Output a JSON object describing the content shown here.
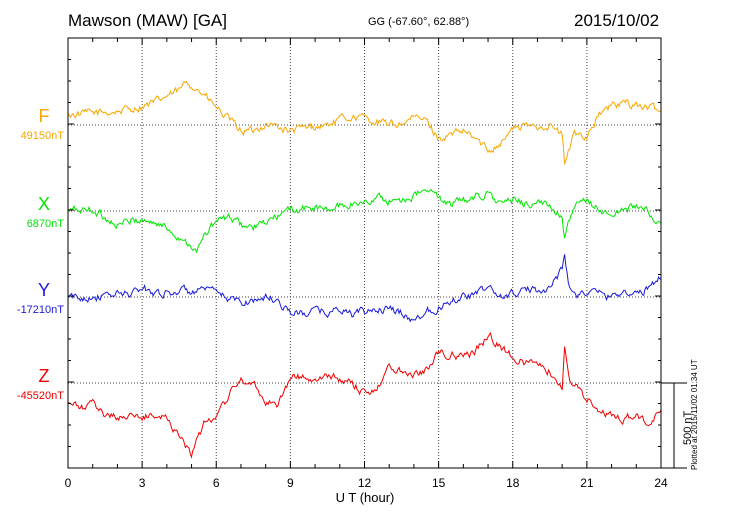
{
  "header": {
    "station": "Mawson (MAW)  [GA]",
    "coords": "GG (-67.60°,  62.88°)",
    "date": "2015/10/02"
  },
  "plotted_note": "Plotted at 2015/11/02 01:34  UT",
  "chart_data": {
    "type": "line",
    "xlabel": "U T (hour)",
    "xlim": [
      0,
      24
    ],
    "xticks": [
      "0",
      "3",
      "6",
      "9",
      "12",
      "15",
      "18",
      "21",
      "24"
    ],
    "grid": true,
    "scale_bar": "500 nT",
    "series": [
      {
        "name": "F",
        "baseline_label": "49150nT",
        "color": "#f7a800",
        "x": [
          0,
          1,
          2,
          3,
          3.5,
          4,
          4.5,
          4.8,
          5,
          5.5,
          6,
          6.5,
          7,
          7.5,
          8,
          8.5,
          9,
          9.5,
          10,
          10.5,
          11,
          11.5,
          12,
          12.5,
          13,
          13.5,
          14,
          14.5,
          15,
          15.5,
          16,
          16.5,
          17,
          17.5,
          18,
          18.5,
          19,
          19.5,
          20,
          20.1,
          20.5,
          21,
          21.5,
          22,
          22.5,
          23,
          23.5,
          24
        ],
        "y": [
          60,
          70,
          80,
          110,
          130,
          170,
          200,
          250,
          240,
          180,
          100,
          30,
          -30,
          -40,
          10,
          -10,
          -40,
          -20,
          -10,
          0,
          30,
          50,
          40,
          20,
          0,
          10,
          40,
          30,
          -80,
          -60,
          -40,
          -80,
          -150,
          -100,
          -20,
          -10,
          -5,
          0,
          -60,
          -230,
          -50,
          -60,
          60,
          110,
          130,
          120,
          100,
          80
        ]
      },
      {
        "name": "X",
        "baseline_label": "6870nT",
        "color": "#00e600",
        "x": [
          0,
          1,
          1.5,
          2,
          2.5,
          3,
          3.5,
          4,
          4.5,
          5,
          5.2,
          5.5,
          6,
          6.5,
          7,
          7.5,
          8,
          8.5,
          9,
          9.5,
          10,
          10.5,
          11,
          11.5,
          12,
          12.5,
          13,
          13.5,
          14,
          14.5,
          15,
          15.5,
          16,
          16.5,
          17,
          17.5,
          18,
          18.5,
          19,
          19.5,
          20,
          20.1,
          20.5,
          21,
          21.5,
          22,
          22.5,
          23,
          23.5,
          24
        ],
        "y": [
          0,
          10,
          -40,
          -80,
          -60,
          -50,
          -70,
          -100,
          -150,
          -200,
          -250,
          -150,
          -60,
          -40,
          -80,
          -100,
          -70,
          -30,
          0,
          10,
          20,
          0,
          30,
          40,
          50,
          80,
          60,
          70,
          90,
          120,
          80,
          40,
          60,
          90,
          100,
          40,
          60,
          50,
          40,
          30,
          -20,
          -150,
          20,
          60,
          10,
          -30,
          10,
          30,
          -10,
          -80
        ]
      },
      {
        "name": "Y",
        "baseline_label": "-17210nT",
        "color": "#1a1adb",
        "x": [
          0,
          0.5,
          1,
          1.5,
          2,
          2.5,
          3,
          3.5,
          4,
          4.5,
          5,
          5.5,
          6,
          6.5,
          7,
          7.5,
          8,
          8.5,
          9,
          9.5,
          10,
          10.5,
          11,
          11.5,
          12,
          12.5,
          13,
          13.5,
          14,
          14.5,
          15,
          15.5,
          16,
          16.5,
          17,
          17.5,
          18,
          18.5,
          19,
          19.5,
          20,
          20.1,
          20.3,
          20.5,
          21,
          21.5,
          22,
          22.5,
          23,
          23.5,
          24
        ],
        "y": [
          0,
          -10,
          10,
          0,
          20,
          20,
          50,
          30,
          20,
          40,
          30,
          40,
          20,
          -10,
          -30,
          -20,
          0,
          -20,
          -90,
          -100,
          -80,
          -90,
          -70,
          -100,
          -90,
          -70,
          -80,
          -90,
          -140,
          -80,
          -60,
          -20,
          10,
          10,
          60,
          0,
          20,
          40,
          40,
          60,
          160,
          240,
          60,
          10,
          30,
          20,
          0,
          40,
          10,
          50,
          130
        ]
      },
      {
        "name": "Z",
        "baseline_label": "-45520nT",
        "color": "#f00000",
        "x": [
          0,
          0.5,
          1,
          1.5,
          2,
          2.5,
          3,
          3.5,
          4,
          4.5,
          5,
          5.5,
          6,
          6.5,
          7,
          7.5,
          8,
          8.5,
          9,
          9.5,
          10,
          10.5,
          11,
          11.5,
          12,
          12.5,
          13,
          13.5,
          14,
          14.5,
          15,
          15.5,
          16,
          16.5,
          17,
          17.5,
          18,
          18.5,
          19,
          19.5,
          20,
          20.1,
          20.3,
          20.5,
          21,
          21.5,
          22,
          22.5,
          23,
          23.5,
          24
        ],
        "y": [
          -120,
          -150,
          -130,
          -180,
          -200,
          -190,
          -210,
          -180,
          -210,
          -300,
          -420,
          -250,
          -180,
          -80,
          20,
          0,
          -100,
          -120,
          30,
          40,
          0,
          40,
          20,
          0,
          -60,
          -20,
          90,
          80,
          60,
          80,
          180,
          170,
          150,
          180,
          280,
          220,
          150,
          120,
          120,
          70,
          -30,
          230,
          40,
          -20,
          -100,
          -160,
          -190,
          -220,
          -180,
          -260,
          -150
        ]
      }
    ]
  }
}
